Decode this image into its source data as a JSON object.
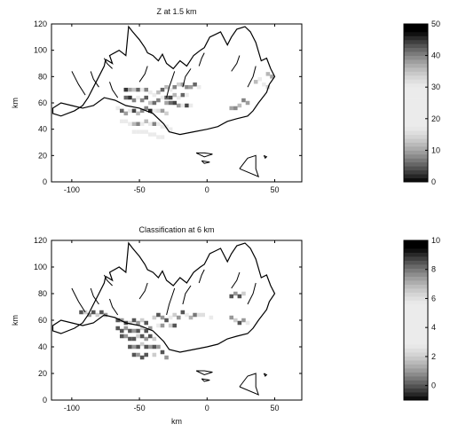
{
  "chart_data": [
    {
      "type": "heatmap",
      "title": "Z at  1.5 km",
      "xlabel": "",
      "ylabel": "km",
      "xlim": [
        -115,
        70
      ],
      "ylim": [
        0,
        120
      ],
      "xticks": [
        -100,
        -50,
        0,
        50
      ],
      "yticks": [
        0,
        20,
        40,
        60,
        80,
        100,
        120
      ],
      "colorbar": {
        "min": 0,
        "max": 50,
        "ticks": [
          0,
          10,
          20,
          30,
          40,
          50
        ],
        "colormap": "gray-banded-dark-ends"
      },
      "cells": [
        [
          -60,
          70,
          45
        ],
        [
          -57,
          70,
          38
        ],
        [
          -54,
          70,
          35
        ],
        [
          -51,
          70,
          42
        ],
        [
          -48,
          70,
          30
        ],
        [
          -45,
          70,
          40
        ],
        [
          -42,
          68,
          20
        ],
        [
          -39,
          66,
          25
        ],
        [
          -36,
          68,
          12
        ],
        [
          -33,
          70,
          42
        ],
        [
          -30,
          72,
          36
        ],
        [
          -27,
          70,
          28
        ],
        [
          -24,
          72,
          40
        ],
        [
          -21,
          74,
          14
        ],
        [
          -18,
          74,
          10
        ],
        [
          -15,
          72,
          8
        ],
        [
          -12,
          72,
          38
        ],
        [
          -9,
          74,
          42
        ],
        [
          -6,
          72,
          30
        ],
        [
          -60,
          64,
          42
        ],
        [
          -57,
          64,
          45
        ],
        [
          -54,
          62,
          40
        ],
        [
          -51,
          64,
          20
        ],
        [
          -48,
          62,
          8
        ],
        [
          -45,
          64,
          5
        ],
        [
          -42,
          60,
          35
        ],
        [
          -39,
          60,
          6
        ],
        [
          -36,
          62,
          40
        ],
        [
          -33,
          64,
          30
        ],
        [
          -30,
          64,
          42
        ],
        [
          -27,
          64,
          44
        ],
        [
          -24,
          66,
          36
        ],
        [
          -21,
          64,
          25
        ],
        [
          -18,
          66,
          42
        ],
        [
          -15,
          66,
          30
        ],
        [
          -66,
          56,
          30
        ],
        [
          -63,
          54,
          42
        ],
        [
          -60,
          52,
          38
        ],
        [
          -57,
          54,
          26
        ],
        [
          -54,
          54,
          44
        ],
        [
          -51,
          52,
          12
        ],
        [
          -48,
          54,
          8
        ],
        [
          -45,
          56,
          40
        ],
        [
          -42,
          54,
          46
        ],
        [
          -39,
          54,
          24
        ],
        [
          -36,
          54,
          32
        ],
        [
          -33,
          54,
          38
        ],
        [
          -30,
          52,
          14
        ],
        [
          -63,
          46,
          22
        ],
        [
          -60,
          46,
          24
        ],
        [
          -57,
          44,
          28
        ],
        [
          -54,
          44,
          36
        ],
        [
          -51,
          44,
          40
        ],
        [
          -48,
          44,
          22
        ],
        [
          -45,
          46,
          12
        ],
        [
          -42,
          44,
          26
        ],
        [
          -39,
          44,
          40
        ],
        [
          -36,
          44,
          24
        ],
        [
          -33,
          42,
          22
        ],
        [
          -30,
          42,
          26
        ],
        [
          -27,
          40,
          28
        ],
        [
          -54,
          38,
          24
        ],
        [
          -51,
          38,
          26
        ],
        [
          -48,
          38,
          30
        ],
        [
          -45,
          38,
          22
        ],
        [
          -42,
          36,
          28
        ],
        [
          -39,
          36,
          24
        ],
        [
          -36,
          34,
          22
        ],
        [
          -33,
          34,
          20
        ],
        [
          -30,
          60,
          10
        ],
        [
          -27,
          60,
          6
        ],
        [
          -24,
          60,
          44
        ],
        [
          -21,
          58,
          38
        ],
        [
          -18,
          58,
          26
        ],
        [
          -15,
          58,
          44
        ],
        [
          -12,
          58,
          22
        ],
        [
          18,
          56,
          10
        ],
        [
          21,
          56,
          8
        ],
        [
          24,
          58,
          12
        ],
        [
          27,
          62,
          40
        ],
        [
          30,
          60,
          38
        ],
        [
          36,
          76,
          12
        ],
        [
          39,
          78,
          24
        ],
        [
          42,
          74,
          20
        ],
        [
          45,
          82,
          36
        ],
        [
          48,
          80,
          10
        ],
        [
          45,
          72,
          14
        ]
      ]
    },
    {
      "type": "heatmap",
      "title": "Classification at  6 km",
      "xlabel": "km",
      "ylabel": "km",
      "xlim": [
        -115,
        70
      ],
      "ylim": [
        0,
        120
      ],
      "xticks": [
        -100,
        -50,
        0,
        50
      ],
      "yticks": [
        0,
        20,
        40,
        60,
        80,
        100,
        120
      ],
      "colorbar": {
        "min": -1,
        "max": 10,
        "ticks": [
          0,
          2,
          4,
          6,
          8,
          10
        ],
        "colormap": "gray-banded-dark-ends"
      },
      "cells": [
        [
          -93,
          66,
          0
        ],
        [
          -90,
          66,
          2
        ],
        [
          -87,
          64,
          1
        ],
        [
          -84,
          66,
          0
        ],
        [
          -81,
          64,
          2
        ],
        [
          -78,
          66,
          0
        ],
        [
          -75,
          64,
          1
        ],
        [
          -66,
          60,
          0
        ],
        [
          -63,
          60,
          1
        ],
        [
          -60,
          58,
          0
        ],
        [
          -57,
          58,
          2
        ],
        [
          -54,
          60,
          0
        ],
        [
          -51,
          58,
          1
        ],
        [
          -48,
          60,
          2
        ],
        [
          -45,
          58,
          0
        ],
        [
          -66,
          54,
          0
        ],
        [
          -63,
          52,
          0
        ],
        [
          -60,
          54,
          1
        ],
        [
          -57,
          52,
          0
        ],
        [
          -54,
          52,
          1
        ],
        [
          -51,
          52,
          0
        ],
        [
          -48,
          54,
          2
        ],
        [
          -45,
          52,
          0
        ],
        [
          -42,
          54,
          1
        ],
        [
          -63,
          48,
          0
        ],
        [
          -60,
          48,
          1
        ],
        [
          -57,
          46,
          0
        ],
        [
          -54,
          46,
          0
        ],
        [
          -51,
          48,
          2
        ],
        [
          -48,
          48,
          0
        ],
        [
          -45,
          46,
          1
        ],
        [
          -42,
          48,
          0
        ],
        [
          -39,
          46,
          2
        ],
        [
          -57,
          40,
          0
        ],
        [
          -54,
          40,
          1
        ],
        [
          -51,
          40,
          0
        ],
        [
          -48,
          42,
          2
        ],
        [
          -45,
          40,
          0
        ],
        [
          -42,
          40,
          1
        ],
        [
          -39,
          40,
          0
        ],
        [
          -36,
          40,
          1
        ],
        [
          -54,
          34,
          0
        ],
        [
          -51,
          34,
          1
        ],
        [
          -48,
          32,
          0
        ],
        [
          -45,
          34,
          0
        ],
        [
          -39,
          34,
          2
        ],
        [
          -33,
          36,
          0
        ],
        [
          -30,
          32,
          1
        ],
        [
          -39,
          62,
          2
        ],
        [
          -36,
          64,
          0
        ],
        [
          -33,
          62,
          1
        ],
        [
          -30,
          60,
          0
        ],
        [
          -27,
          62,
          3
        ],
        [
          -24,
          64,
          2
        ],
        [
          -21,
          62,
          1
        ],
        [
          -18,
          66,
          0
        ],
        [
          -15,
          64,
          5
        ],
        [
          -12,
          62,
          7
        ],
        [
          -9,
          64,
          8
        ],
        [
          -6,
          64,
          6
        ],
        [
          -36,
          56,
          4
        ],
        [
          -33,
          56,
          1
        ],
        [
          -27,
          56,
          2
        ],
        [
          -24,
          56,
          0
        ],
        [
          18,
          78,
          0
        ],
        [
          21,
          80,
          1
        ],
        [
          24,
          78,
          0
        ],
        [
          27,
          80,
          2
        ],
        [
          18,
          62,
          1
        ],
        [
          21,
          60,
          2
        ],
        [
          24,
          58,
          0
        ],
        [
          27,
          60,
          1
        ],
        [
          30,
          58,
          3
        ],
        [
          -3,
          64,
          6
        ],
        [
          3,
          62,
          5
        ]
      ]
    }
  ]
}
